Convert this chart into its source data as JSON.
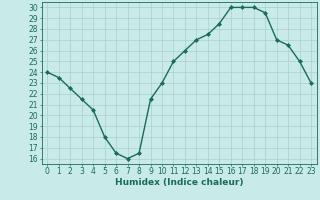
{
  "x": [
    0,
    1,
    2,
    3,
    4,
    5,
    6,
    7,
    8,
    9,
    10,
    11,
    12,
    13,
    14,
    15,
    16,
    17,
    18,
    19,
    20,
    21,
    22,
    23
  ],
  "y": [
    24.0,
    23.5,
    22.5,
    21.5,
    20.5,
    18.0,
    16.5,
    16.0,
    16.5,
    21.5,
    23.0,
    25.0,
    26.0,
    27.0,
    27.5,
    28.5,
    30.0,
    30.0,
    30.0,
    29.5,
    27.0,
    26.5,
    25.0,
    23.0
  ],
  "line_color": "#1a6b5a",
  "marker": "D",
  "marker_size": 2.0,
  "bg_color": "#c8eae8",
  "grid_color": "#aecfcc",
  "axis_color": "#1a6b5a",
  "xlabel": "Humidex (Indice chaleur)",
  "xlim": [
    -0.5,
    23.5
  ],
  "ylim": [
    15.5,
    30.5
  ],
  "yticks": [
    16,
    17,
    18,
    19,
    20,
    21,
    22,
    23,
    24,
    25,
    26,
    27,
    28,
    29,
    30
  ],
  "xticks": [
    0,
    1,
    2,
    3,
    4,
    5,
    6,
    7,
    8,
    9,
    10,
    11,
    12,
    13,
    14,
    15,
    16,
    17,
    18,
    19,
    20,
    21,
    22,
    23
  ],
  "label_fontsize": 6.5,
  "tick_fontsize": 5.5,
  "xlabel_fontsize": 6.5
}
